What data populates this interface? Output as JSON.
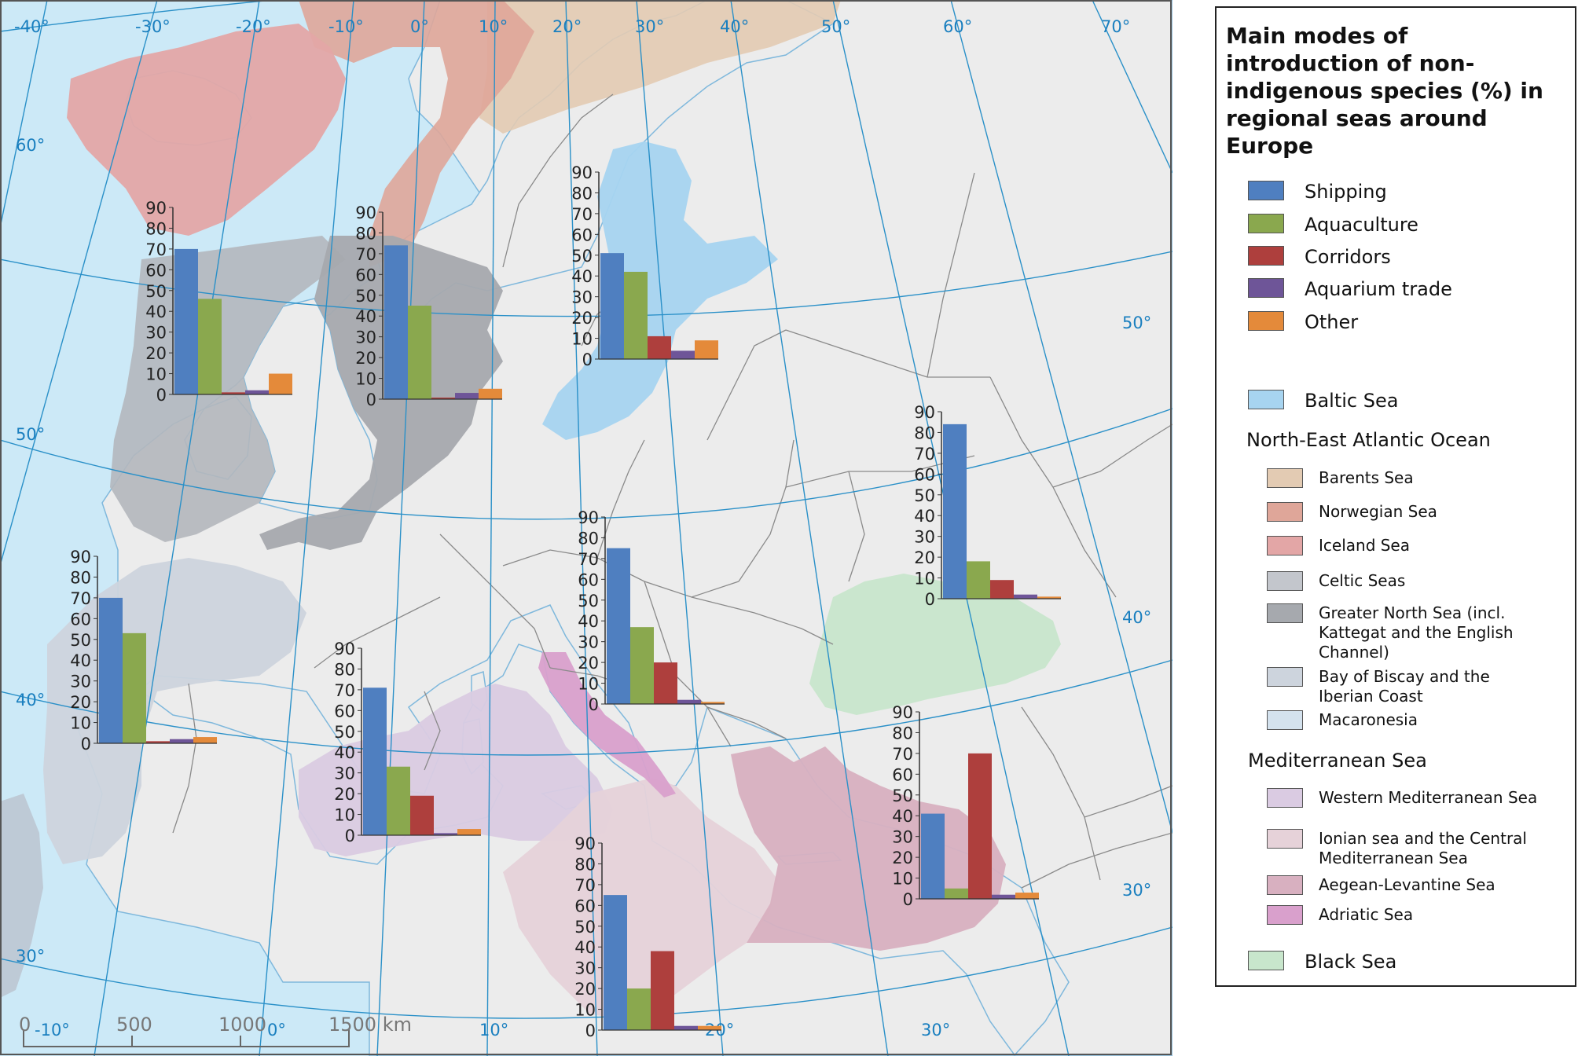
{
  "legend": {
    "title": "Main modes of introduction of non-indigenous species (%) in regional seas around Europe",
    "modes": [
      {
        "label": "Shipping",
        "color": "#4f7fc0"
      },
      {
        "label": "Aquaculture",
        "color": "#8aa84e"
      },
      {
        "label": "Corridors",
        "color": "#ae3f3d"
      },
      {
        "label": "Aquarium trade",
        "color": "#6e5598"
      },
      {
        "label": "Other",
        "color": "#e48a3a"
      }
    ],
    "baltic": {
      "label": "Baltic Sea",
      "color": "#a7d4f0"
    },
    "nea_heading": "North-East Atlantic Ocean",
    "nea_items": [
      {
        "label": "Barents Sea",
        "color": "#e3cbb3"
      },
      {
        "label": "Norwegian Sea",
        "color": "#dfa699"
      },
      {
        "label": "Iceland Sea",
        "color": "#e3a6a6"
      },
      {
        "label": "Celtic Seas",
        "color": "#c3c6cc"
      },
      {
        "label": "Greater North Sea (incl. Kattegat and the English Channel)",
        "color": "#a6a9ae"
      },
      {
        "label": "Bay of Biscay and the Iberian Coast",
        "color": "#cdd4dd"
      },
      {
        "label": "Macaronesia",
        "color": "#d4e2ee"
      }
    ],
    "med_heading": "Mediterranean Sea",
    "med_items": [
      {
        "label": "Western Mediterranean Sea",
        "color": "#dacbe2"
      },
      {
        "label": "Ionian sea and the Central Mediterranean Sea",
        "color": "#e6d2d9"
      },
      {
        "label": "Aegean-Levantine Sea",
        "color": "#d8b0c0"
      },
      {
        "label": "Adriatic Sea",
        "color": "#d9a0cc"
      }
    ],
    "black": {
      "label": "Black Sea",
      "color": "#c8e6cc"
    }
  },
  "map": {
    "colors": {
      "sea": "#cce9f7",
      "land": "#ececec",
      "border": "#8a8a8a",
      "graticule": "#2a90c8",
      "label": "#1a7fbf"
    },
    "lon_labels": [
      "-40°",
      "-30°",
      "-20°",
      "-10°",
      "0°",
      "10°",
      "20°",
      "30°",
      "40°",
      "50°",
      "60°",
      "70°",
      "-10°",
      "0°",
      "10°",
      "20°",
      "30°"
    ],
    "lat_labels": [
      "60°",
      "50°",
      "40°",
      "30°",
      "50°",
      "40°",
      "30°"
    ],
    "scale": {
      "labels": [
        "0",
        "500",
        "1000",
        "1500 km"
      ]
    }
  },
  "chart_data": [
    {
      "type": "bar",
      "region": "Celtic Seas",
      "categories": [
        "Shipping",
        "Aquaculture",
        "Corridors",
        "Aquarium trade",
        "Other"
      ],
      "values": [
        70,
        46,
        1,
        2,
        10
      ],
      "ylim": [
        0,
        90
      ],
      "ticks": [
        0,
        10,
        20,
        30,
        40,
        50,
        60,
        70,
        80,
        90
      ]
    },
    {
      "type": "bar",
      "region": "Greater North Sea (incl. Kattegat and the English Channel)",
      "categories": [
        "Shipping",
        "Aquaculture",
        "Corridors",
        "Aquarium trade",
        "Other"
      ],
      "values": [
        74,
        45,
        0,
        3,
        5
      ],
      "ylim": [
        0,
        90
      ],
      "ticks": [
        0,
        10,
        20,
        30,
        40,
        50,
        60,
        70,
        80,
        90
      ]
    },
    {
      "type": "bar",
      "region": "Baltic Sea",
      "categories": [
        "Shipping",
        "Aquaculture",
        "Corridors",
        "Aquarium trade",
        "Other"
      ],
      "values": [
        51,
        42,
        11,
        4,
        9
      ],
      "ylim": [
        0,
        90
      ],
      "ticks": [
        0,
        10,
        20,
        30,
        40,
        50,
        60,
        70,
        80,
        90
      ]
    },
    {
      "type": "bar",
      "region": "Black Sea",
      "categories": [
        "Shipping",
        "Aquaculture",
        "Corridors",
        "Aquarium trade",
        "Other"
      ],
      "values": [
        84,
        18,
        9,
        2,
        1
      ],
      "ylim": [
        0,
        90
      ],
      "ticks": [
        0,
        10,
        20,
        30,
        40,
        50,
        60,
        70,
        80,
        90
      ]
    },
    {
      "type": "bar",
      "region": "Bay of Biscay and the Iberian Coast",
      "categories": [
        "Shipping",
        "Aquaculture",
        "Corridors",
        "Aquarium trade",
        "Other"
      ],
      "values": [
        70,
        53,
        1,
        2,
        3
      ],
      "ylim": [
        0,
        90
      ],
      "ticks": [
        0,
        10,
        20,
        30,
        40,
        50,
        60,
        70,
        80,
        90
      ]
    },
    {
      "type": "bar",
      "region": "Adriatic Sea",
      "categories": [
        "Shipping",
        "Aquaculture",
        "Corridors",
        "Aquarium trade",
        "Other"
      ],
      "values": [
        75,
        37,
        20,
        2,
        1
      ],
      "ylim": [
        0,
        90
      ],
      "ticks": [
        0,
        10,
        20,
        30,
        40,
        50,
        60,
        70,
        80,
        90
      ]
    },
    {
      "type": "bar",
      "region": "Western Mediterranean Sea",
      "categories": [
        "Shipping",
        "Aquaculture",
        "Corridors",
        "Aquarium trade",
        "Other"
      ],
      "values": [
        71,
        33,
        19,
        1,
        3
      ],
      "ylim": [
        0,
        90
      ],
      "ticks": [
        0,
        10,
        20,
        30,
        40,
        50,
        60,
        70,
        80,
        90
      ]
    },
    {
      "type": "bar",
      "region": "Aegean-Levantine Sea",
      "categories": [
        "Shipping",
        "Aquaculture",
        "Corridors",
        "Aquarium trade",
        "Other"
      ],
      "values": [
        41,
        5,
        70,
        2,
        3
      ],
      "ylim": [
        0,
        90
      ],
      "ticks": [
        0,
        10,
        20,
        30,
        40,
        50,
        60,
        70,
        80,
        90
      ]
    },
    {
      "type": "bar",
      "region": "Ionian sea and the Central Mediterranean Sea",
      "categories": [
        "Shipping",
        "Aquaculture",
        "Corridors",
        "Aquarium trade",
        "Other"
      ],
      "values": [
        65,
        20,
        38,
        2,
        2
      ],
      "ylim": [
        0,
        90
      ],
      "ticks": [
        0,
        10,
        20,
        30,
        40,
        50,
        60,
        70,
        80,
        90
      ]
    }
  ]
}
